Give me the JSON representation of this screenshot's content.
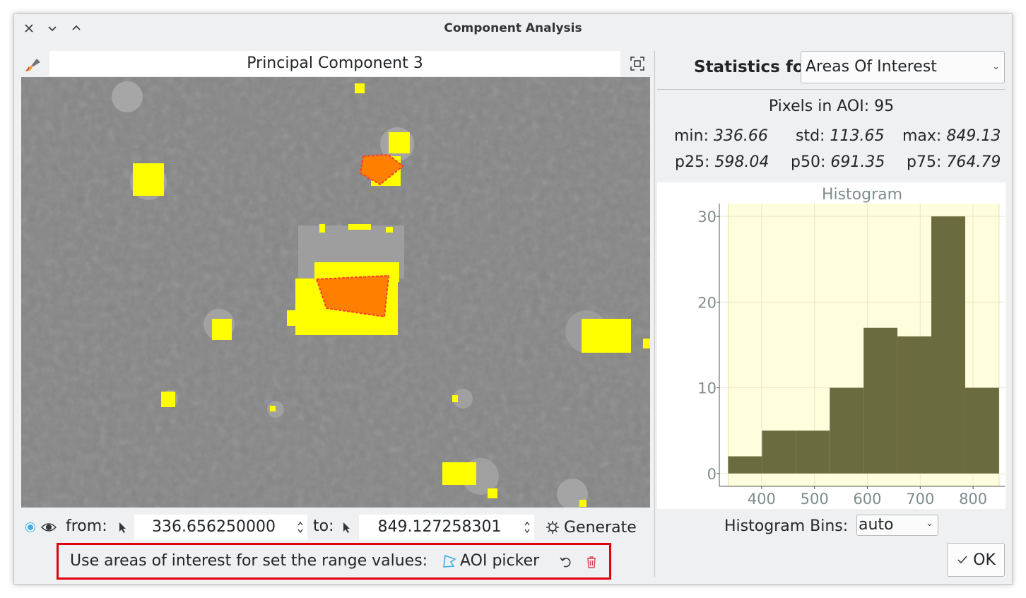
{
  "window": {
    "title": "Component Analysis"
  },
  "viewer": {
    "image_title": "Principal Component 3"
  },
  "range": {
    "from_label": "from:",
    "from_value": "336.656250000",
    "to_label": "to:",
    "to_value": "849.127258301",
    "generate_label": "Generate"
  },
  "aoi": {
    "label": "Use areas of interest for set the range values:",
    "picker_label": "AOI picker"
  },
  "stats": {
    "for_label": "Statistics for:",
    "for_value": "Areas Of Interest",
    "pixels": "Pixels in AOI: 95",
    "min_label": "min:",
    "min_value": "336.66",
    "std_label": "std:",
    "std_value": "113.65",
    "max_label": "max:",
    "max_value": "849.13",
    "p25_label": "p25:",
    "p25_value": "598.04",
    "p50_label": "p50:",
    "p50_value": "691.35",
    "p75_label": "p75:",
    "p75_value": "764.79"
  },
  "histogram": {
    "bins_label": "Histogram Bins:",
    "bins_value": "auto"
  },
  "ok_label": "OK",
  "colors": {
    "bar": "#6b6b40",
    "plot_bg": "#fefedd",
    "highlight": "#ffff00",
    "aoi_fill": "#ff8000",
    "accent": "#3daee9",
    "box": "#e0000e"
  },
  "chart_data": {
    "type": "bar",
    "title": "Histogram",
    "xlabel": "",
    "ylabel": "",
    "xlim": [
      320,
      860
    ],
    "ylim": [
      -1.5,
      31.5
    ],
    "x_ticks": [
      400,
      500,
      600,
      700,
      800
    ],
    "y_ticks": [
      0,
      10,
      20,
      30
    ],
    "grid": true,
    "bin_edges": [
      336.66,
      400.7,
      464.7,
      528.8,
      592.9,
      656.9,
      721.0,
      785.1,
      849.13
    ],
    "values": [
      2,
      5,
      5,
      10,
      17,
      16,
      30,
      10
    ]
  }
}
